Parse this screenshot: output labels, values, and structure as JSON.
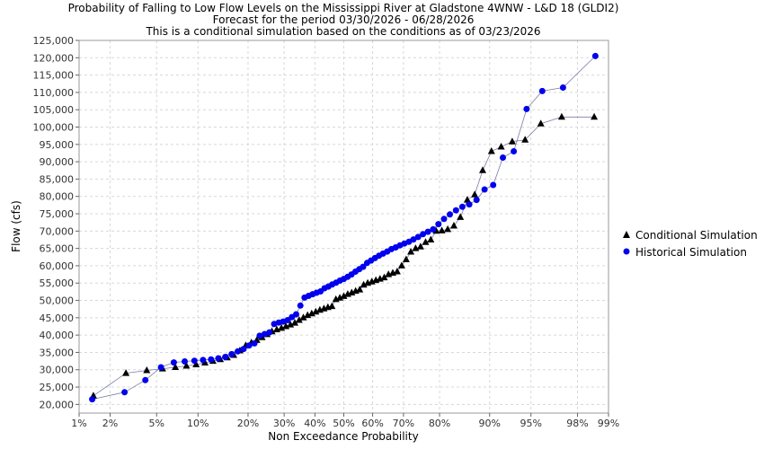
{
  "chart_data": {
    "type": "line",
    "title": "Probability of Falling to Low Flow Levels on the Mississippi River at Gladstone 4WNW - L&D 18 (GLDI2)",
    "subtitle": "Forecast for the period  03/30/2026 - 06/28/2026",
    "subtitle2": "This is a conditional simulation based on the conditions as of 03/23/2026",
    "xlabel": "Non Exceedance Probability",
    "ylabel": "Flow (cfs)",
    "x_scale": "normal-probability",
    "xlim": [
      1,
      99
    ],
    "ylim": [
      17500,
      125000
    ],
    "grid": true,
    "legend_position": "right",
    "x_ticks": [
      1,
      2,
      5,
      10,
      20,
      30,
      40,
      50,
      60,
      70,
      80,
      90,
      95,
      98,
      99
    ],
    "x_tick_labels": [
      "1%",
      "2%",
      "5%",
      "10%",
      "20%",
      "30%",
      "40%",
      "50%",
      "60%",
      "70%",
      "80%",
      "90%",
      "95%",
      "98%",
      "99%"
    ],
    "y_ticks": [
      20000,
      25000,
      30000,
      35000,
      40000,
      45000,
      50000,
      55000,
      60000,
      65000,
      70000,
      75000,
      80000,
      85000,
      90000,
      95000,
      100000,
      105000,
      110000,
      115000,
      120000,
      125000
    ],
    "y_tick_labels": [
      "20,000",
      "25,000",
      "30,000",
      "35,000",
      "40,000",
      "45,000",
      "50,000",
      "55,000",
      "60,000",
      "65,000",
      "70,000",
      "75,000",
      "80,000",
      "85,000",
      "90,000",
      "95,000",
      "100,000",
      "105,000",
      "110,000",
      "115,000",
      "120,000",
      "125,000"
    ],
    "series": [
      {
        "name": "Conditional Simulation",
        "marker": "triangle",
        "color": "#000000",
        "y": [
          22500,
          29000,
          29800,
          30300,
          30700,
          31100,
          31500,
          32000,
          32500,
          33000,
          33500,
          34200,
          35500,
          37000,
          37800,
          38500,
          39300,
          40200,
          41000,
          41600,
          42000,
          42500,
          43000,
          43500,
          44300,
          45000,
          45700,
          46200,
          46700,
          47200,
          47600,
          48000,
          48300,
          50300,
          50700,
          51200,
          51800,
          52200,
          52700,
          53100,
          54500,
          55000,
          55400,
          55800,
          56200,
          56600,
          57500,
          57900,
          58300,
          60000,
          61800,
          64000,
          65000,
          65500,
          66800,
          67500,
          70000,
          70100,
          70500,
          71500,
          74000,
          79000,
          80500,
          87500,
          93000,
          94300,
          95800,
          96300,
          101000,
          102900,
          102900
        ]
      },
      {
        "name": "Historical Simulation",
        "marker": "circle",
        "color": "#0000ee",
        "y": [
          21500,
          23500,
          27000,
          30700,
          32100,
          32400,
          32600,
          32800,
          33000,
          33300,
          33700,
          34500,
          35300,
          36000,
          37000,
          37600,
          39800,
          40300,
          40800,
          43200,
          43600,
          43900,
          44300,
          45200,
          46000,
          48500,
          50800,
          51300,
          51800,
          52200,
          52600,
          53500,
          54000,
          54600,
          55100,
          55700,
          56200,
          56800,
          57500,
          58300,
          59000,
          59700,
          60800,
          61500,
          62200,
          62900,
          63500,
          64100,
          64800,
          65300,
          65900,
          66400,
          66900,
          67600,
          68300,
          69100,
          69800,
          70500,
          72000,
          73500,
          74800,
          76000,
          77000,
          77700,
          79000,
          82000,
          83300,
          91200,
          93000,
          105200,
          110400,
          111400,
          120500
        ]
      }
    ]
  }
}
